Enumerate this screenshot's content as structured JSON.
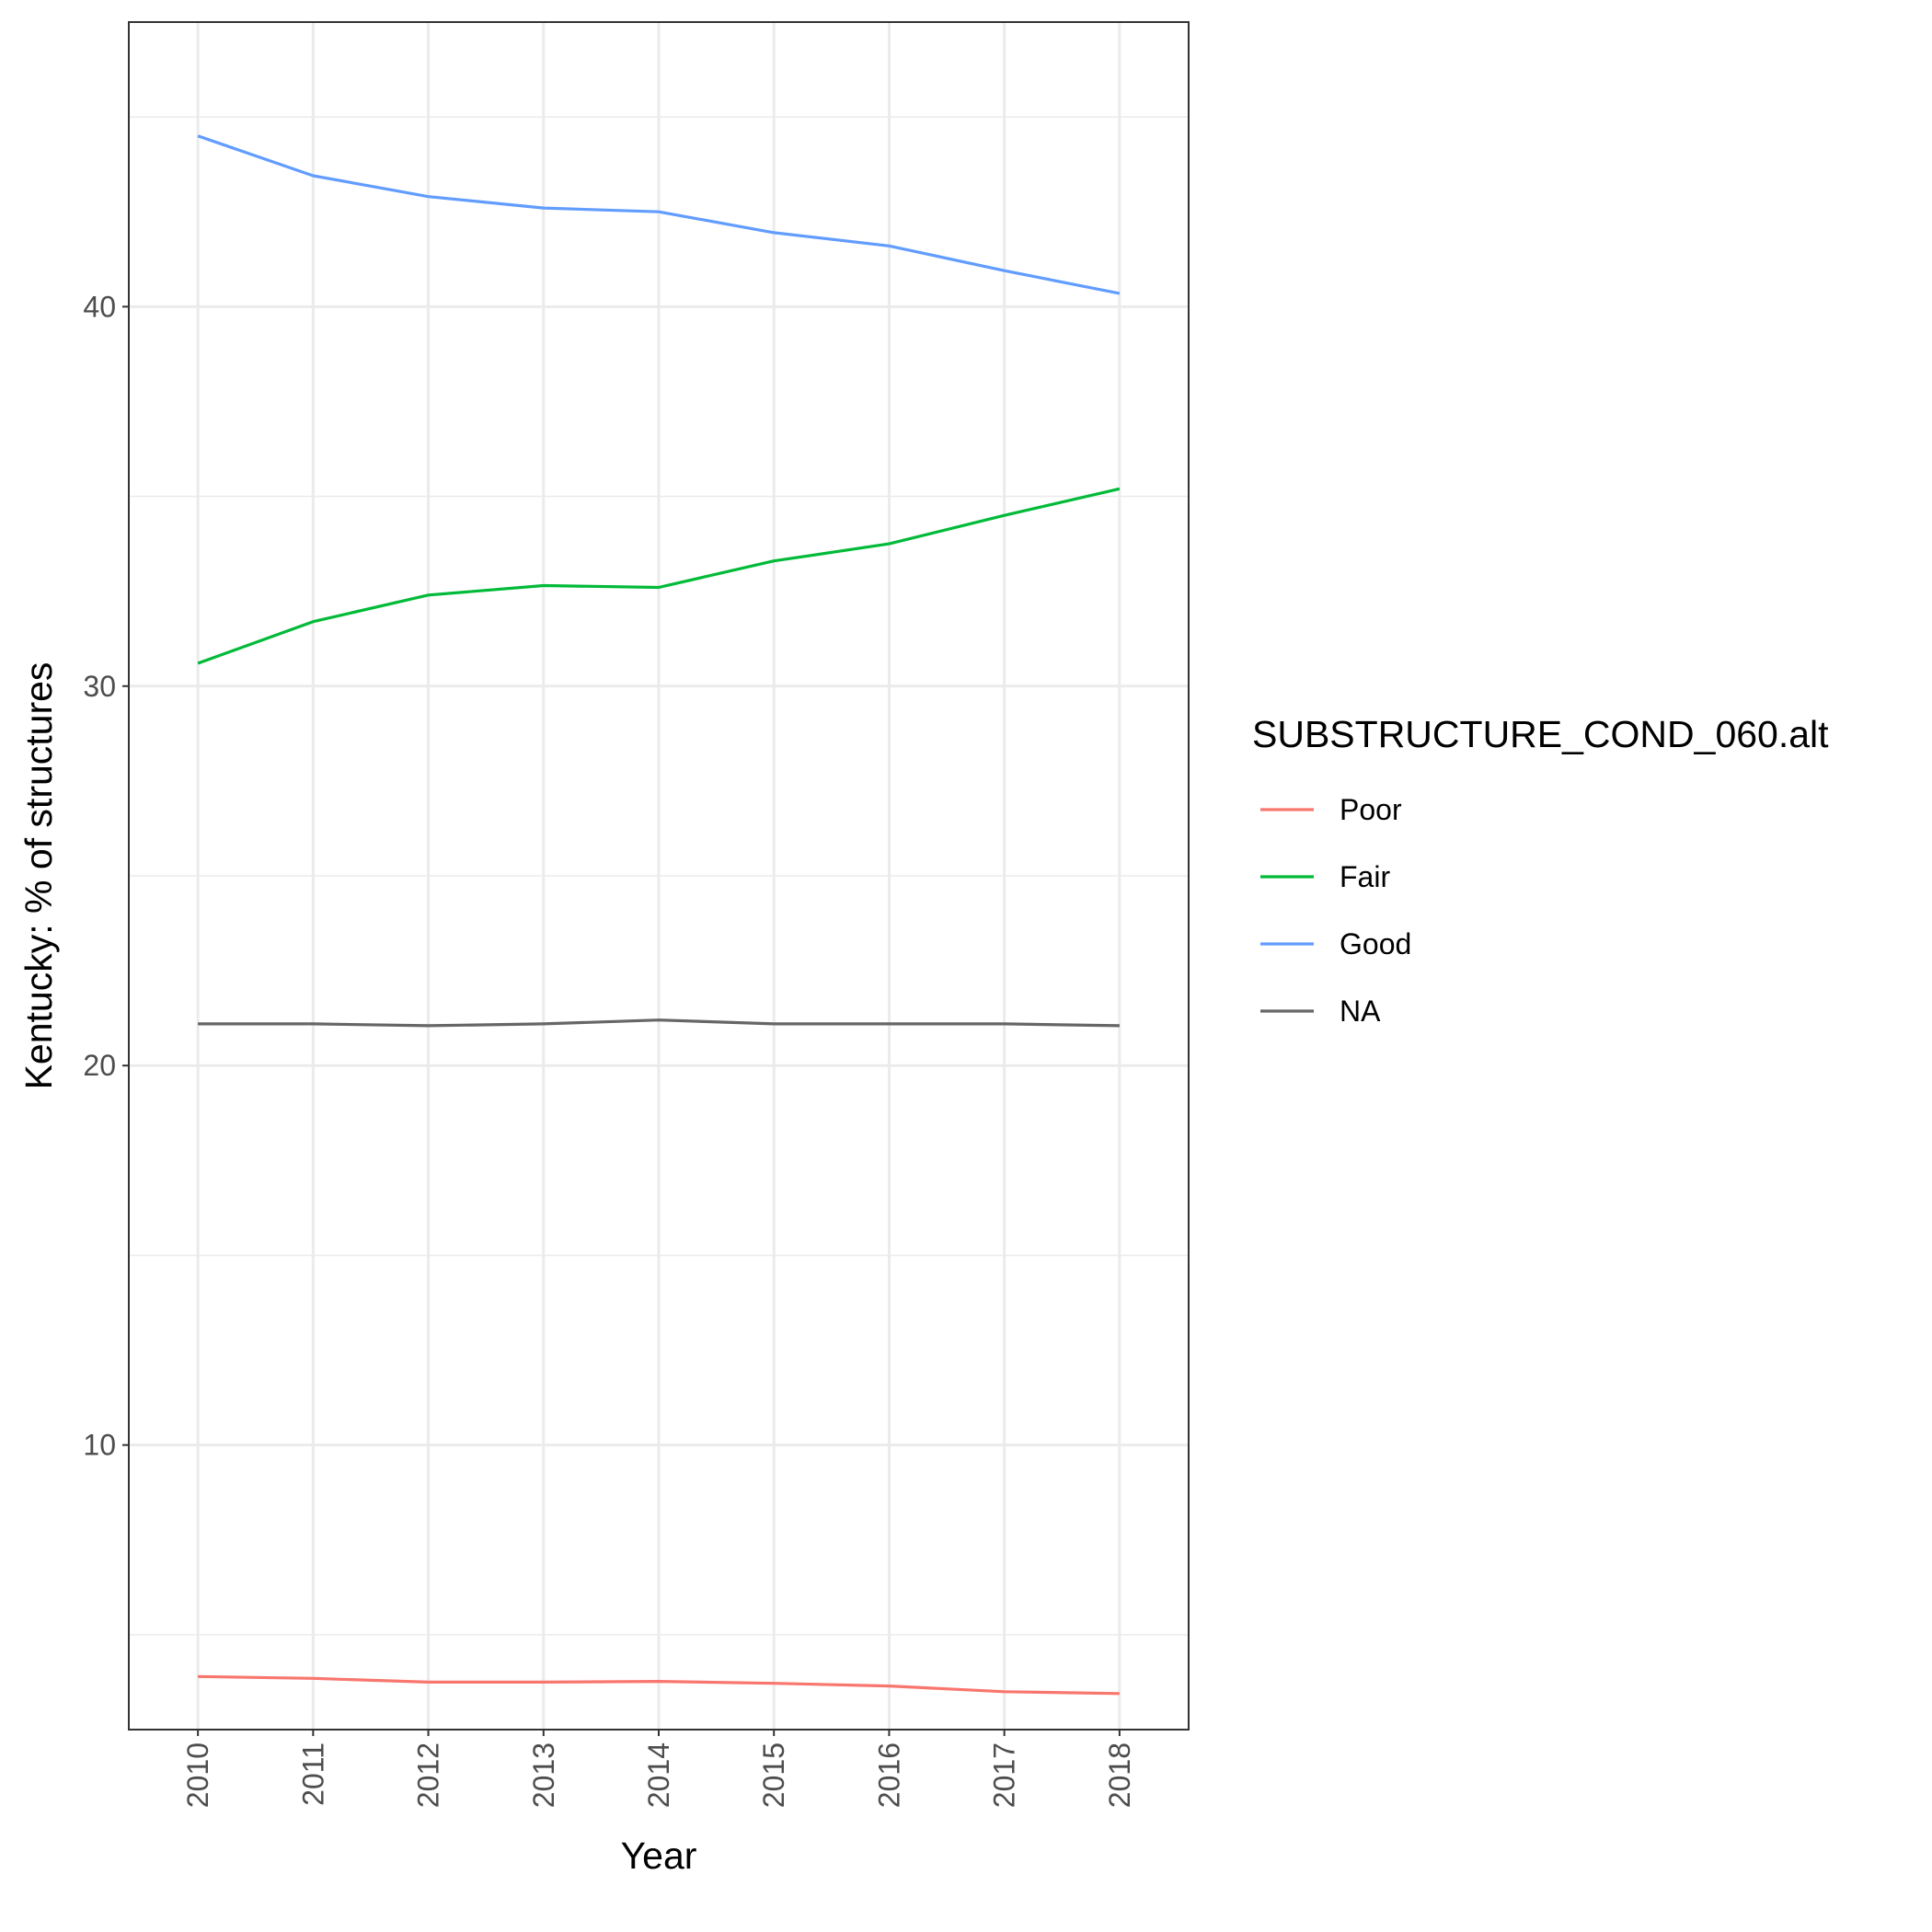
{
  "chart_data": {
    "type": "line",
    "x": [
      "2010",
      "2011",
      "2012",
      "2013",
      "2014",
      "2015",
      "2016",
      "2017",
      "2018"
    ],
    "xlabel": "Year",
    "ylabel": "Kentucky: % of structures",
    "ylim": [
      2.5,
      47.5
    ],
    "yticks": [
      10,
      20,
      30,
      40
    ],
    "grid": true,
    "legend": {
      "title": "SUBSTRUCTURE_COND_060.alt",
      "position": "right"
    },
    "series": [
      {
        "name": "Poor",
        "color": "#F8766D",
        "values": [
          3.9,
          3.85,
          3.75,
          3.75,
          3.77,
          3.72,
          3.65,
          3.5,
          3.45
        ]
      },
      {
        "name": "Fair",
        "color": "#00BA38",
        "values": [
          30.6,
          31.7,
          32.4,
          32.65,
          32.6,
          33.3,
          33.75,
          34.5,
          35.2
        ]
      },
      {
        "name": "Good",
        "color": "#619CFF",
        "values": [
          44.5,
          43.45,
          42.9,
          42.6,
          42.5,
          41.95,
          41.6,
          40.95,
          40.35
        ]
      },
      {
        "name": "NA",
        "color": "#666666",
        "values": [
          21.1,
          21.1,
          21.05,
          21.1,
          21.2,
          21.1,
          21.1,
          21.1,
          21.05
        ]
      }
    ]
  }
}
